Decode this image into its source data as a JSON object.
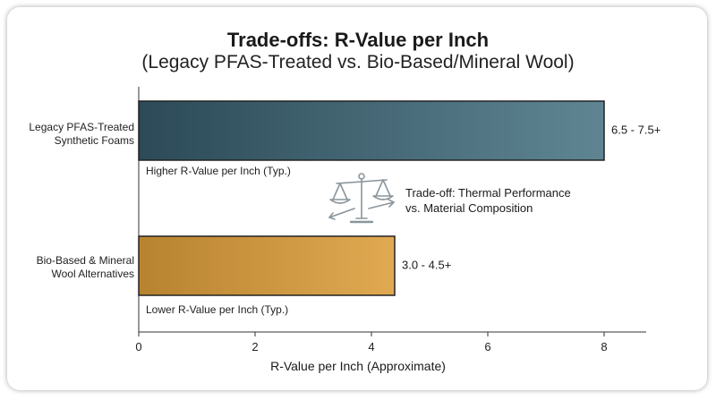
{
  "chart_data": {
    "type": "bar",
    "orientation": "horizontal",
    "title": "Trade-offs: R-Value per Inch",
    "subtitle": "(Legacy PFAS-Treated vs. Bio-Based/Mineral Wool)",
    "xlabel": "R-Value per Inch (Approximate)",
    "xlim": [
      0,
      8.7
    ],
    "xticks": [
      0,
      2,
      4,
      6,
      8
    ],
    "grid": false,
    "categories": [
      [
        "Legacy PFAS-Treated",
        "Synthetic Foams"
      ],
      [
        "Bio-Based & Mineral",
        "Wool Alternatives"
      ]
    ],
    "values": [
      8.0,
      4.4
    ],
    "value_labels": [
      "6.5 - 7.5+",
      "3.0 - 4.5+"
    ],
    "bar_notes": [
      "Higher R-Value per Inch (Typ.)",
      "Lower R-Value per Inch (Typ.)"
    ],
    "bar_colors": [
      [
        "#2c4a57",
        "#5f8593"
      ],
      [
        "#b88330",
        "#e0a952"
      ]
    ],
    "annotation": {
      "lines": [
        "Trade-off: Thermal Performance",
        "vs. Material Composition"
      ],
      "icon": "balance-scale-icon"
    }
  }
}
